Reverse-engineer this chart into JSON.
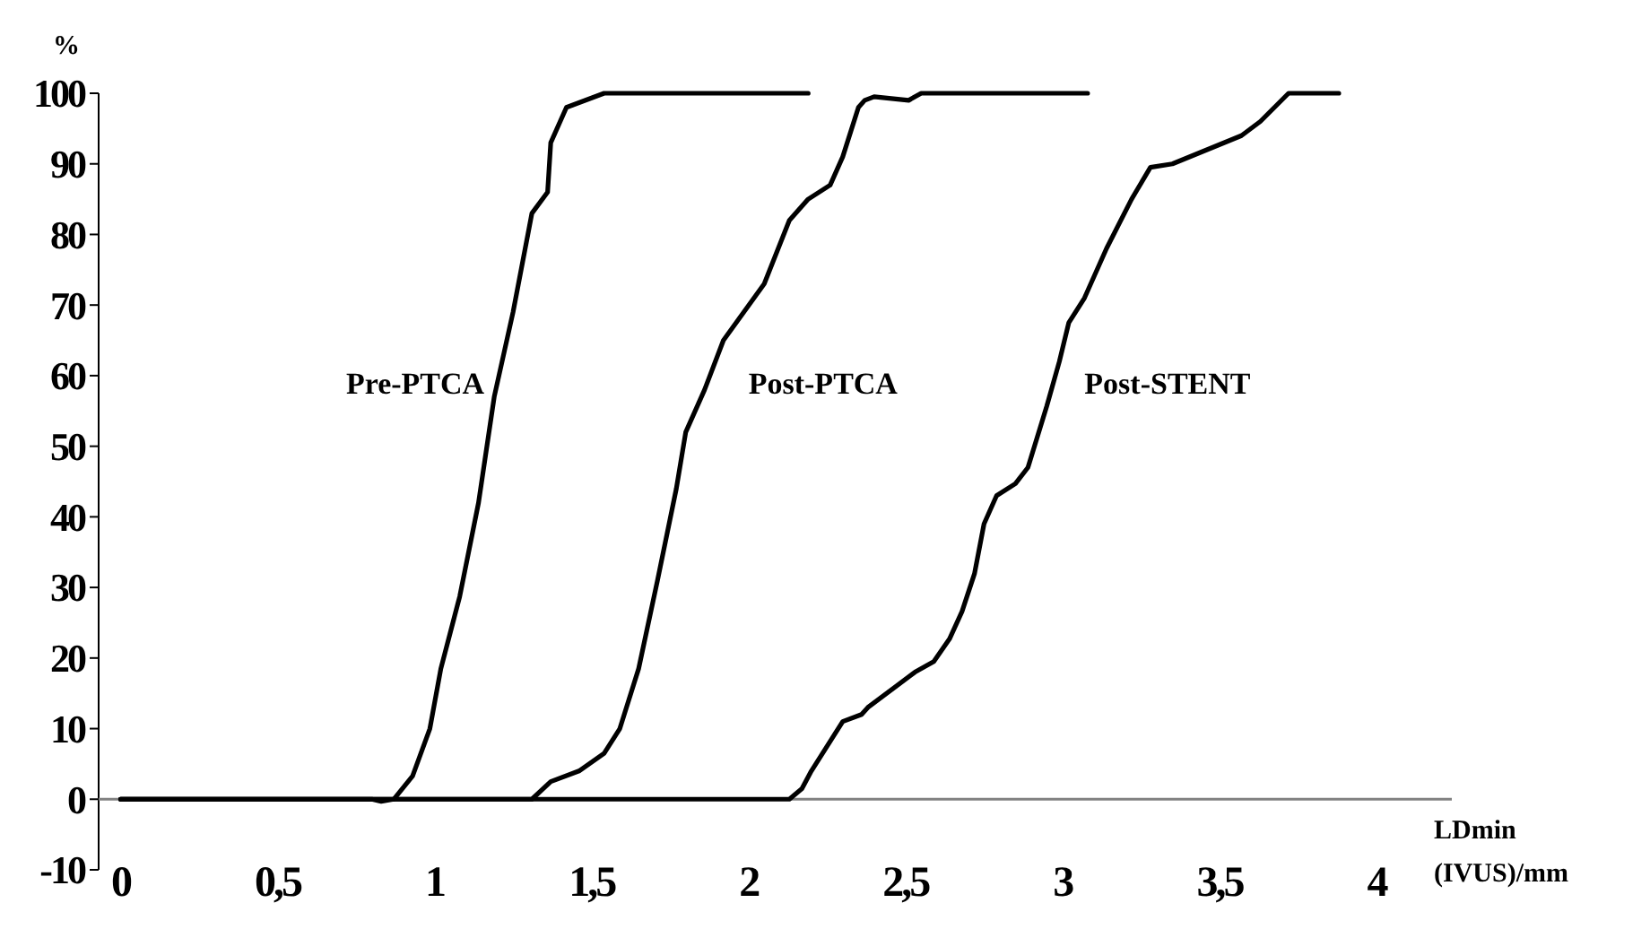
{
  "chart_data": {
    "type": "line",
    "ylabel": "%",
    "xlabel": "LDmin (IVUS)/mm",
    "xlim": [
      -0.07,
      4.24
    ],
    "ylim": [
      -10,
      100
    ],
    "xticks": [
      0,
      {
        "value": 0.5,
        "label": "0,5"
      },
      1,
      {
        "value": 1.5,
        "label": "1,5"
      },
      2,
      {
        "value": 2.5,
        "label": "2,5"
      },
      3,
      {
        "value": 3.5,
        "label": "3,5"
      },
      4
    ],
    "yticks": [
      -10,
      0,
      10,
      20,
      30,
      40,
      50,
      60,
      70,
      80,
      90,
      100
    ],
    "grid": false,
    "marker": "none",
    "line_style": "solid",
    "series": [
      {
        "name": "Pre-PTCA",
        "color": "#000000",
        "x": [
          0,
          0.8,
          0.83,
          0.87,
          0.93,
          0.985,
          1.02,
          1.08,
          1.14,
          1.19,
          1.25,
          1.31,
          1.36,
          1.37,
          1.42,
          1.54,
          2.19
        ],
        "values": [
          0,
          0,
          -0.3,
          0,
          3.3,
          10,
          18.5,
          28.7,
          42,
          57,
          69,
          83,
          86,
          93,
          98,
          100,
          100
        ]
      },
      {
        "name": "Post-PTCA",
        "color": "#000000",
        "x": [
          0,
          1.31,
          1.37,
          1.46,
          1.54,
          1.59,
          1.65,
          1.71,
          1.77,
          1.8,
          1.86,
          1.92,
          2.05,
          2.13,
          2.19,
          2.26,
          2.3,
          2.35,
          2.37,
          2.4,
          2.51,
          2.55,
          3.08
        ],
        "values": [
          0,
          0,
          2.5,
          4,
          6.5,
          10,
          18.5,
          31,
          44,
          52,
          58,
          65,
          73,
          82,
          85,
          87,
          91,
          98,
          99,
          99.5,
          99,
          100,
          100
        ]
      },
      {
        "name": "Post-STENT",
        "color": "#000000",
        "x": [
          0,
          2.13,
          2.17,
          2.2,
          2.3,
          2.36,
          2.38,
          2.53,
          2.59,
          2.64,
          2.68,
          2.72,
          2.75,
          2.79,
          2.85,
          2.89,
          2.95,
          2.99,
          3.02,
          3.07,
          3.14,
          3.22,
          3.28,
          3.35,
          3.57,
          3.63,
          3.72,
          3.88
        ],
        "values": [
          0,
          0,
          1.5,
          4,
          11,
          12,
          13,
          18,
          19.5,
          22.7,
          26.6,
          32,
          39,
          43,
          44.7,
          47,
          55.7,
          62,
          67.5,
          71,
          78,
          85,
          89.5,
          90,
          94,
          96,
          100,
          100
        ]
      }
    ]
  }
}
